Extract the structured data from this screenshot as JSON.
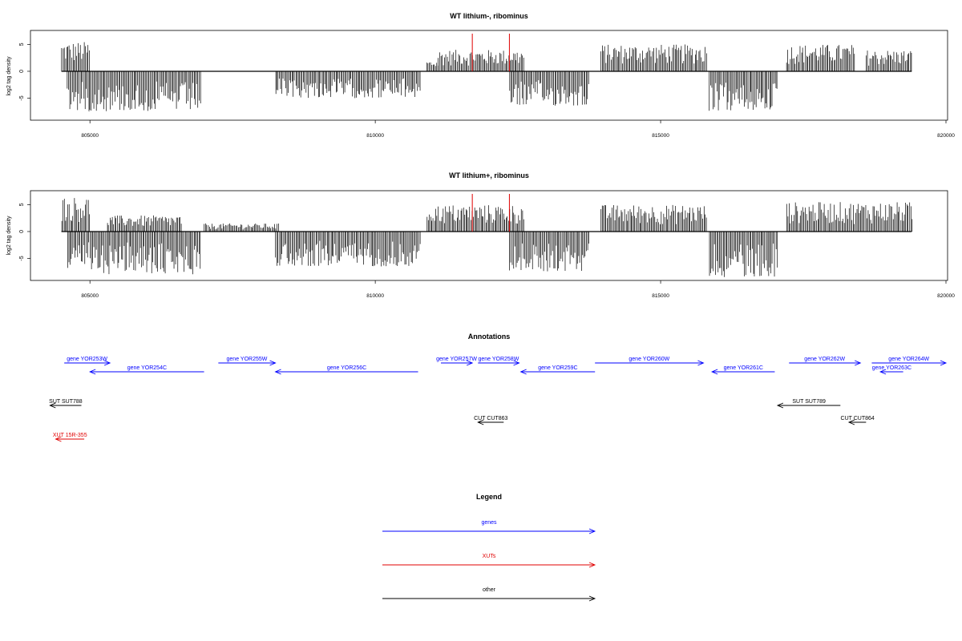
{
  "colors": {
    "bars": "#000000",
    "marker": "#e00000",
    "gene": "#0000ff",
    "xut": "#e00000",
    "other": "#000000"
  },
  "chart_data": [
    {
      "type": "bar",
      "title": "WT lithium-, ribominus",
      "ylabel": "log2 tag density",
      "xlim": [
        804000,
        820000
      ],
      "ylim": [
        -8.5,
        7
      ],
      "x_ticks": [
        805000,
        810000,
        815000,
        820000
      ],
      "x_tick_labels": [
        "805000",
        "810000",
        "815000",
        "820000"
      ],
      "y_ticks": [
        -5,
        0,
        5
      ],
      "y_tick_labels": [
        "-5",
        "0",
        "5"
      ],
      "markers": [
        811700,
        812350
      ],
      "series": [
        {
          "strand": "plus",
          "segments": [
            {
              "start": 804500,
              "end": 805000,
              "max": 5.5
            },
            {
              "start": 810900,
              "end": 811100,
              "max": 2
            },
            {
              "start": 811100,
              "end": 812600,
              "max": 4
            },
            {
              "start": 813950,
              "end": 815800,
              "max": 5
            },
            {
              "start": 817200,
              "end": 818400,
              "max": 5
            },
            {
              "start": 818600,
              "end": 819400,
              "max": 4
            }
          ]
        },
        {
          "strand": "minus",
          "segments": [
            {
              "start": 804600,
              "end": 806950,
              "min": -7.5
            },
            {
              "start": 808250,
              "end": 810800,
              "min": -5
            },
            {
              "start": 812350,
              "end": 813750,
              "min": -6.5
            },
            {
              "start": 815850,
              "end": 817050,
              "min": -7.5
            }
          ]
        }
      ]
    },
    {
      "type": "bar",
      "title": "WT lithium+, ribominus",
      "ylabel": "log2 tag density",
      "xlim": [
        804000,
        820000
      ],
      "ylim": [
        -8.5,
        7
      ],
      "x_ticks": [
        805000,
        810000,
        815000,
        820000
      ],
      "x_tick_labels": [
        "805000",
        "810000",
        "815000",
        "820000"
      ],
      "y_ticks": [
        -5,
        0,
        5
      ],
      "y_tick_labels": [
        "-5",
        "0",
        "5"
      ],
      "markers": [
        811700,
        812350
      ],
      "series": [
        {
          "strand": "plus",
          "segments": [
            {
              "start": 804500,
              "end": 805000,
              "max": 6.5
            },
            {
              "start": 805300,
              "end": 806600,
              "max": 3
            },
            {
              "start": 807000,
              "end": 808300,
              "max": 1.5
            },
            {
              "start": 810900,
              "end": 812600,
              "max": 5
            },
            {
              "start": 813950,
              "end": 815800,
              "max": 5
            },
            {
              "start": 817200,
              "end": 819400,
              "max": 5.5
            }
          ]
        },
        {
          "strand": "minus",
          "segments": [
            {
              "start": 804600,
              "end": 806950,
              "min": -8
            },
            {
              "start": 808250,
              "end": 810800,
              "min": -6.5
            },
            {
              "start": 812350,
              "end": 813750,
              "min": -7.5
            },
            {
              "start": 815850,
              "end": 817050,
              "min": -8.5
            }
          ]
        }
      ]
    }
  ],
  "annotations": {
    "title": "Annotations",
    "features": [
      {
        "label": "gene YOR253W",
        "kind": "gene",
        "strand": "+",
        "start": 804550,
        "end": 805350,
        "row": 0
      },
      {
        "label": "gene YOR254C",
        "kind": "gene",
        "strand": "-",
        "start": 805000,
        "end": 807000,
        "row": 1
      },
      {
        "label": "gene YOR255W",
        "kind": "gene",
        "strand": "+",
        "start": 807250,
        "end": 808250,
        "row": 0
      },
      {
        "label": "gene YOR256C",
        "kind": "gene",
        "strand": "-",
        "start": 808250,
        "end": 810750,
        "row": 1
      },
      {
        "label": "gene YOR257W",
        "kind": "gene",
        "strand": "+",
        "start": 811150,
        "end": 811700,
        "row": 0
      },
      {
        "label": "gene YOR258W",
        "kind": "gene",
        "strand": "+",
        "start": 811800,
        "end": 812520,
        "row": 0
      },
      {
        "label": "gene YOR259C",
        "kind": "gene",
        "strand": "-",
        "start": 812550,
        "end": 813850,
        "row": 1
      },
      {
        "label": "gene YOR260W",
        "kind": "gene",
        "strand": "+",
        "start": 813850,
        "end": 815750,
        "row": 0
      },
      {
        "label": "gene YOR261C",
        "kind": "gene",
        "strand": "-",
        "start": 815900,
        "end": 817000,
        "row": 1
      },
      {
        "label": "gene YOR262W",
        "kind": "gene",
        "strand": "+",
        "start": 817250,
        "end": 818500,
        "row": 0
      },
      {
        "label": "gene YOR263C",
        "kind": "gene",
        "strand": "-",
        "start": 818850,
        "end": 819250,
        "row": 1
      },
      {
        "label": "gene YOR264W",
        "kind": "gene",
        "strand": "+",
        "start": 818700,
        "end": 820000,
        "row": 0
      },
      {
        "label": "SUT SUT788",
        "kind": "other",
        "strand": "-",
        "start": 804300,
        "end": 804850,
        "row": 2
      },
      {
        "label": "SUT SUT789",
        "kind": "other",
        "strand": "-",
        "start": 817050,
        "end": 818150,
        "row": 2
      },
      {
        "label": "CUT CUT863",
        "kind": "other",
        "strand": "-",
        "start": 811800,
        "end": 812250,
        "row": 3
      },
      {
        "label": "CUT CUT864",
        "kind": "other",
        "strand": "-",
        "start": 818300,
        "end": 818600,
        "row": 3
      },
      {
        "label": "XUT 15R-355",
        "kind": "xut",
        "strand": "-",
        "start": 804400,
        "end": 804900,
        "row": 4
      }
    ]
  },
  "legend": {
    "title": "Legend",
    "items": [
      {
        "label": "genes",
        "kind": "gene"
      },
      {
        "label": "XUTs",
        "kind": "xut"
      },
      {
        "label": "other",
        "kind": "other"
      }
    ]
  }
}
